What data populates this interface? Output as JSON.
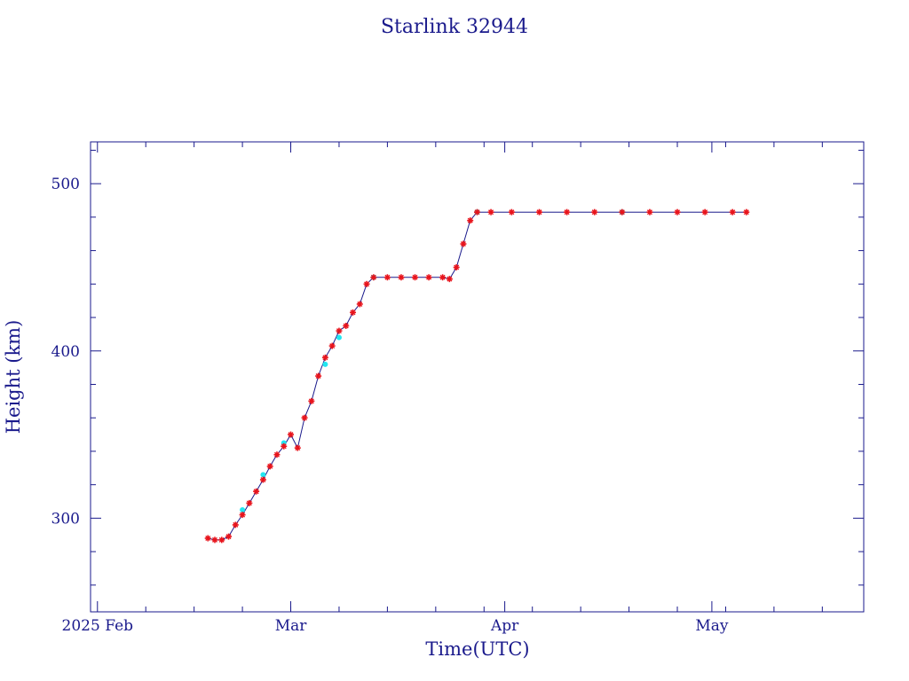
{
  "colors": {
    "axis": "#1a1a8c",
    "line": "#1a1a8c",
    "point_red": "#e8141c",
    "point_cyan": "#22e6f0"
  },
  "chart_data": {
    "type": "line",
    "title": "Starlink 32944",
    "xlabel": "Time(UTC)",
    "ylabel": "Height (km)",
    "x_tick_labels": [
      "2025 Feb",
      "Mar",
      "Apr",
      "May"
    ],
    "x_tick_dates": [
      "2025-02-01",
      "2025-03-01",
      "2025-04-01",
      "2025-05-01"
    ],
    "xlim": [
      "2025-01-31",
      "2025-05-23"
    ],
    "y_ticks": [
      300,
      400,
      500
    ],
    "ylim": [
      244,
      525
    ],
    "grid": false,
    "series": [
      {
        "marker": "red-star",
        "x": [
          "2025-02-17",
          "2025-02-18",
          "2025-02-19",
          "2025-02-20",
          "2025-02-21",
          "2025-02-22",
          "2025-02-23",
          "2025-02-24",
          "2025-02-25",
          "2025-02-26",
          "2025-02-27",
          "2025-02-28",
          "2025-03-01",
          "2025-03-02",
          "2025-03-03",
          "2025-03-04",
          "2025-03-05",
          "2025-03-06",
          "2025-03-07",
          "2025-03-08",
          "2025-03-09",
          "2025-03-10",
          "2025-03-11",
          "2025-03-12",
          "2025-03-13",
          "2025-03-15",
          "2025-03-17",
          "2025-03-19",
          "2025-03-21",
          "2025-03-23",
          "2025-03-24",
          "2025-03-25",
          "2025-03-26",
          "2025-03-27",
          "2025-03-28",
          "2025-03-30",
          "2025-04-02",
          "2025-04-06",
          "2025-04-10",
          "2025-04-14",
          "2025-04-18",
          "2025-04-22",
          "2025-04-26",
          "2025-04-30",
          "2025-05-04",
          "2025-05-06"
        ],
        "y": [
          288,
          287,
          287,
          289,
          296,
          302,
          309,
          316,
          323,
          331,
          338,
          343,
          350,
          342,
          360,
          370,
          385,
          396,
          403,
          412,
          415,
          423,
          428,
          440,
          444,
          444,
          444,
          444,
          444,
          444,
          443,
          450,
          464,
          478,
          483,
          483,
          483,
          483,
          483,
          483,
          483,
          483,
          483,
          483,
          483,
          483
        ]
      },
      {
        "marker": "cyan-point",
        "x": [
          "2025-02-22",
          "2025-02-25",
          "2025-02-28",
          "2025-03-06",
          "2025-03-08",
          "2025-03-13",
          "2025-03-28",
          "2025-04-18"
        ],
        "y": [
          305,
          326,
          345,
          392,
          408,
          444,
          483,
          483
        ]
      }
    ]
  }
}
